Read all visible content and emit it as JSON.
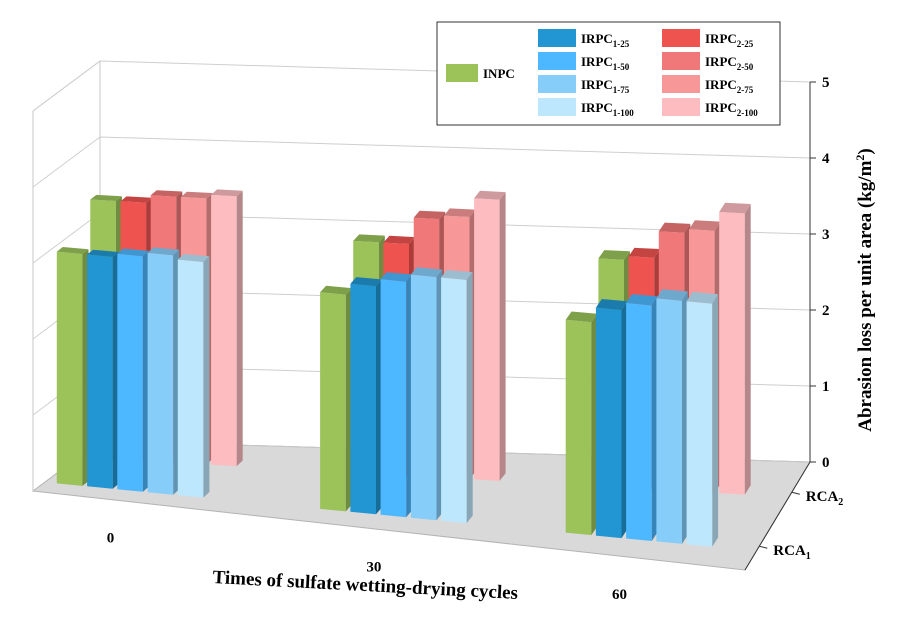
{
  "chart_data": {
    "type": "bar3d",
    "xlabel": "Times of sulfate wetting-drying cycles",
    "ylabel": "Abrasion loss per unit area (kg/m",
    "ylabel_sup": "2",
    "ylabel_close": ")",
    "x_categories": [
      "0",
      "30",
      "60"
    ],
    "depth_categories": [
      {
        "base": "RCA",
        "sub": "1"
      },
      {
        "base": "RCA",
        "sub": "2"
      }
    ],
    "ylim": [
      0,
      5
    ],
    "yticks": [
      "0",
      "1",
      "2",
      "3",
      "4",
      "5"
    ],
    "series": [
      {
        "name": "INPC",
        "base": "INPC",
        "sub": "",
        "color": "#9bc35a",
        "rca1": [
          3.05,
          2.85,
          2.8
        ],
        "rca2": [
          3.4,
          3.05,
          3.0
        ]
      },
      {
        "name": "IRPC1-25",
        "base": "IRPC",
        "sub": "1-25",
        "color": "#2196d3",
        "rca1": [
          3.05,
          3.0,
          3.0
        ],
        "rca2": null
      },
      {
        "name": "IRPC1-50",
        "base": "IRPC",
        "sub": "1-50",
        "color": "#4db8ff",
        "rca1": [
          3.1,
          3.1,
          3.1
        ],
        "rca2": null
      },
      {
        "name": "IRPC1-75",
        "base": "IRPC",
        "sub": "1-75",
        "color": "#87cdfa",
        "rca1": [
          3.15,
          3.2,
          3.2
        ],
        "rca2": null
      },
      {
        "name": "IRPC1-100",
        "base": "IRPC",
        "sub": "1-100",
        "color": "#bde7fc",
        "rca1": [
          3.1,
          3.2,
          3.2
        ],
        "rca2": null
      },
      {
        "name": "IRPC2-25",
        "base": "IRPC",
        "sub": "2-25",
        "color": "#ef5350",
        "rca1": null,
        "rca2": [
          3.4,
          3.05,
          3.05
        ]
      },
      {
        "name": "IRPC2-50",
        "base": "IRPC",
        "sub": "2-50",
        "color": "#f07878",
        "rca1": null,
        "rca2": [
          3.5,
          3.4,
          3.4
        ]
      },
      {
        "name": "IRPC2-75",
        "base": "IRPC",
        "sub": "2-75",
        "color": "#f89797",
        "rca1": null,
        "rca2": [
          3.5,
          3.45,
          3.45
        ]
      },
      {
        "name": "IRPC2-100",
        "base": "IRPC",
        "sub": "2-100",
        "color": "#fdbcc0",
        "rca1": null,
        "rca2": [
          3.55,
          3.7,
          3.7
        ]
      }
    ]
  }
}
